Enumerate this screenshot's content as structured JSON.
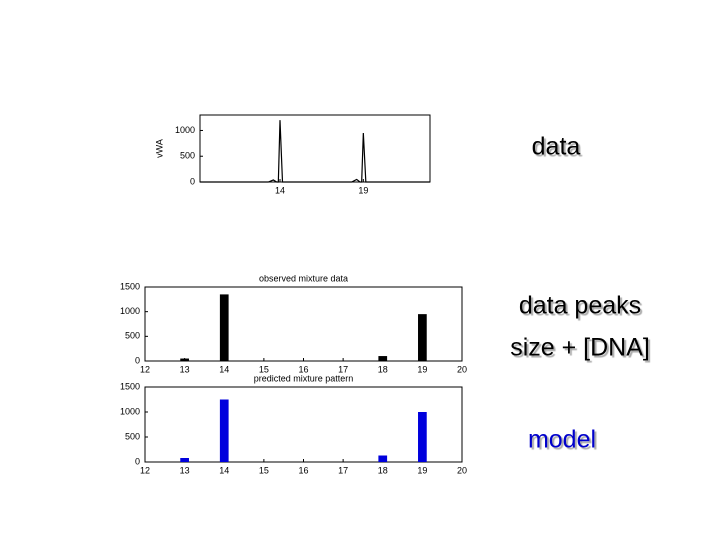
{
  "chart_data": [
    {
      "type": "line",
      "ylabel": "vWA",
      "x": [
        9.2,
        13.3,
        13.6,
        13.8,
        13.9,
        14,
        14.15,
        18.3,
        18.6,
        18.8,
        18.9,
        19,
        19.15,
        23
      ],
      "values": [
        0,
        0,
        40,
        0,
        0,
        1200,
        0,
        0,
        50,
        0,
        0,
        950,
        0,
        0
      ],
      "color": "#000000",
      "xlim": [
        9.2,
        23
      ],
      "xticks": [
        14,
        19
      ],
      "ylim": [
        0,
        1300
      ],
      "yticks": [
        0,
        500,
        1000
      ]
    },
    {
      "type": "bar",
      "title": "observed mixture data",
      "x": [
        13,
        14,
        18,
        19
      ],
      "values": [
        50,
        1350,
        100,
        950
      ],
      "color": "#000000",
      "xlim": [
        12,
        20
      ],
      "xticks": [
        12,
        13,
        14,
        15,
        16,
        17,
        18,
        19,
        20
      ],
      "ylim": [
        0,
        1500
      ],
      "yticks": [
        0,
        500,
        1000,
        1500
      ]
    },
    {
      "type": "bar",
      "title": "predicted mixture pattern",
      "x": [
        13,
        14,
        18,
        19
      ],
      "values": [
        80,
        1250,
        130,
        1000
      ],
      "color": "#0000dd",
      "xlim": [
        12,
        20
      ],
      "xticks": [
        12,
        13,
        14,
        15,
        16,
        17,
        18,
        19,
        20
      ],
      "ylim": [
        0,
        1500
      ],
      "yticks": [
        0,
        500,
        1000,
        1500
      ]
    }
  ],
  "labels": [
    "data",
    "data peaks",
    "size + [DNA]",
    "model"
  ]
}
